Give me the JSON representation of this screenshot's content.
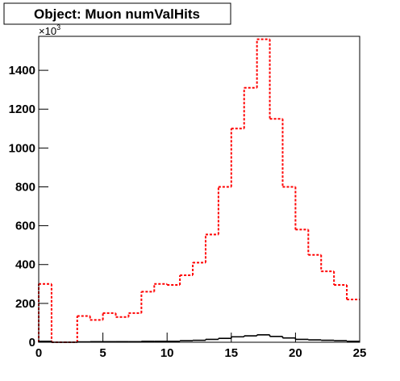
{
  "chart_data": {
    "type": "histogram",
    "title": "Object: Muon numValHits",
    "y_multiplier": {
      "base": "×10",
      "exponent": "3"
    },
    "bins": [
      0,
      1,
      2,
      3,
      4,
      5,
      6,
      7,
      8,
      9,
      10,
      11,
      12,
      13,
      14,
      15,
      16,
      17,
      18,
      19,
      20,
      21,
      22,
      23,
      24,
      25
    ],
    "series": [
      {
        "color": "#ff0000",
        "line_style": "dashed",
        "values": [
          300,
          0,
          0,
          135,
          115,
          150,
          130,
          150,
          260,
          300,
          295,
          345,
          410,
          555,
          800,
          1100,
          1310,
          1560,
          1150,
          800,
          580,
          450,
          365,
          295,
          220
        ]
      },
      {
        "color": "#000000",
        "line_style": "solid",
        "values": [
          5,
          0,
          0,
          2,
          3,
          3,
          3,
          3,
          5,
          5,
          5,
          8,
          10,
          15,
          20,
          28,
          33,
          38,
          30,
          22,
          15,
          12,
          10,
          8,
          5
        ]
      }
    ],
    "xlim": [
      0,
      25
    ],
    "xticks": [
      0,
      5,
      10,
      15,
      20,
      25
    ],
    "ylim": [
      0,
      1575
    ],
    "yticks": [
      0,
      200,
      400,
      600,
      800,
      1000,
      1200,
      1400
    ]
  }
}
